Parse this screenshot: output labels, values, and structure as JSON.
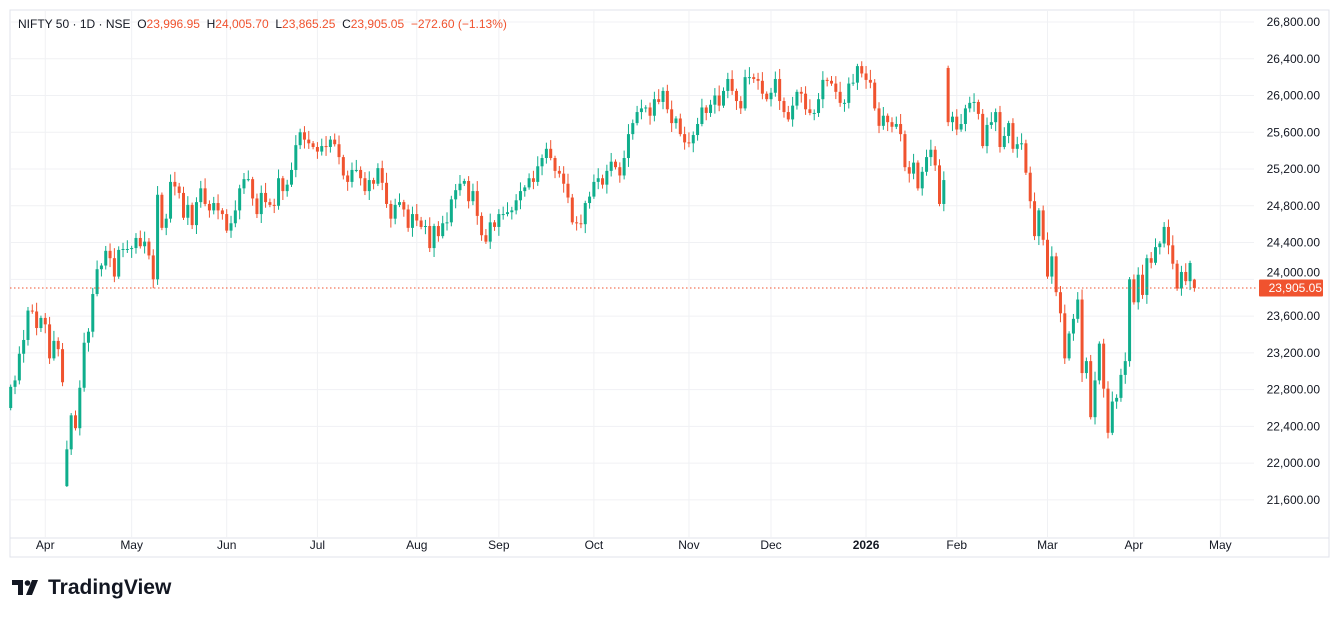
{
  "legend": {
    "symbol": "NIFTY 50",
    "interval": "1D",
    "exchange": "NSE",
    "o_label": "O",
    "open": "23,996.95",
    "h_label": "H",
    "high": "24,005.70",
    "l_label": "L",
    "low": "23,865.25",
    "c_label": "C",
    "close": "23,905.05",
    "change": "−272.60 (−1.13%)"
  },
  "last_price_label": "23,905.05",
  "brand": "TradingView",
  "colors": {
    "up": "#0fae8c",
    "down": "#f0532f",
    "last": "#f0532f",
    "grid": "#f0f1f4"
  },
  "chart_data": {
    "type": "candlestick",
    "title": "NIFTY 50 · 1D · NSE",
    "ylim": [
      21200,
      26800
    ],
    "y_ticks": [
      "26,800.00",
      "26,400.00",
      "26,000.00",
      "25,600.00",
      "25,200.00",
      "24,800.00",
      "24,400.00",
      "24,000.00",
      "23,600.00",
      "23,200.00",
      "22,800.00",
      "22,400.00",
      "22,000.00",
      "21,600.00"
    ],
    "y_tick_values": [
      26800,
      26400,
      26000,
      25600,
      25200,
      24800,
      24400,
      24000,
      23600,
      23200,
      22800,
      22400,
      22000,
      21600
    ],
    "x_ticks": [
      {
        "label": "Apr",
        "index": 8,
        "bold": false
      },
      {
        "label": "May",
        "index": 28,
        "bold": false
      },
      {
        "label": "Jun",
        "index": 50,
        "bold": false
      },
      {
        "label": "Jul",
        "index": 71,
        "bold": false
      },
      {
        "label": "Aug",
        "index": 94,
        "bold": false
      },
      {
        "label": "Sep",
        "index": 113,
        "bold": false
      },
      {
        "label": "Oct",
        "index": 135,
        "bold": false
      },
      {
        "label": "Nov",
        "index": 157,
        "bold": false
      },
      {
        "label": "Dec",
        "index": 176,
        "bold": false
      },
      {
        "label": "2026",
        "index": 198,
        "bold": true
      },
      {
        "label": "Feb",
        "index": 219,
        "bold": false
      },
      {
        "label": "Mar",
        "index": 240,
        "bold": false
      },
      {
        "label": "Apr",
        "index": 260,
        "bold": false
      },
      {
        "label": "May",
        "index": 280,
        "bold": false
      }
    ],
    "last_close": 23905.05,
    "first_open": 22600,
    "open_overrides": {
      "13": 21750,
      "217": 26300,
      "274": 23996.95
    },
    "high_overrides": {
      "274": 24005.7
    },
    "low_overrides": {
      "13": 21740,
      "274": 23865.25
    },
    "close": [
      22830,
      22900,
      23190,
      23340,
      23660,
      23650,
      23470,
      23580,
      23510,
      23140,
      23330,
      23240,
      22880,
      22150,
      22520,
      22380,
      22820,
      23310,
      23430,
      23840,
      24110,
      24150,
      24310,
      24230,
      24030,
      24320,
      24330,
      24330,
      24340,
      24450,
      24360,
      24410,
      24260,
      24000,
      24920,
      24560,
      24660,
      25060,
      25010,
      24940,
      24670,
      24810,
      24590,
      24840,
      24990,
      24820,
      24750,
      24830,
      24750,
      24710,
      24530,
      24610,
      24750,
      24990,
      25090,
      25090,
      24880,
      24710,
      24940,
      24840,
      24810,
      24800,
      25100,
      24960,
      25030,
      25190,
      25460,
      25600,
      25520,
      25480,
      25440,
      25390,
      25450,
      25440,
      25520,
      25470,
      25330,
      25130,
      25060,
      25190,
      25190,
      25100,
      24960,
      25080,
      25040,
      25210,
      25050,
      24820,
      24660,
      24810,
      24840,
      24760,
      24560,
      24710,
      24640,
      24570,
      24580,
      24340,
      24580,
      24470,
      24610,
      24620,
      24870,
      24970,
      25040,
      25070,
      24850,
      24960,
      24690,
      24480,
      24410,
      24620,
      24570,
      24710,
      24710,
      24730,
      24750,
      24860,
      24960,
      25000,
      25100,
      25060,
      25230,
      25320,
      25420,
      25320,
      25180,
      25150,
      25040,
      24890,
      24620,
      24610,
      24600,
      24830,
      24900,
      25060,
      25100,
      25030,
      25180,
      25280,
      25220,
      25130,
      25320,
      25580,
      25700,
      25820,
      25860,
      25870,
      25780,
      25960,
      25930,
      26050,
      25850,
      25700,
      25750,
      25580,
      25490,
      25480,
      25570,
      25690,
      25870,
      25810,
      25900,
      26000,
      25890,
      26050,
      26180,
      26050,
      25940,
      25860,
      26200,
      26200,
      26180,
      26160,
      26020,
      25960,
      26030,
      26180,
      25940,
      25820,
      25740,
      25890,
      26040,
      26020,
      25850,
      25810,
      25810,
      25960,
      26170,
      26160,
      26130,
      26040,
      25920,
      25920,
      26130,
      26140,
      26320,
      26240,
      26170,
      26140,
      25860,
      25670,
      25780,
      25710,
      25660,
      25690,
      25580,
      25220,
      25150,
      25270,
      24990,
      25170,
      25330,
      25410,
      25240,
      24820,
      25080,
      25710,
      25770,
      25630,
      25690,
      25860,
      25920,
      25930,
      25800,
      25450,
      25680,
      25710,
      25820,
      25440,
      25560,
      25700,
      25420,
      25470,
      25480,
      25160,
      24850,
      24470,
      24750,
      24430,
      24030,
      24250,
      23860,
      23630,
      23140,
      23410,
      23570,
      23780,
      22980,
      23110,
      22500,
      22900,
      23300,
      22810,
      22330,
      22670,
      22710,
      22960,
      23110,
      24000,
      23750,
      24050,
      23830,
      24230,
      24180,
      24350,
      24390,
      24570,
      24370,
      24170,
      23900,
      24080,
      23980,
      24177.65,
      23905.05
    ]
  }
}
